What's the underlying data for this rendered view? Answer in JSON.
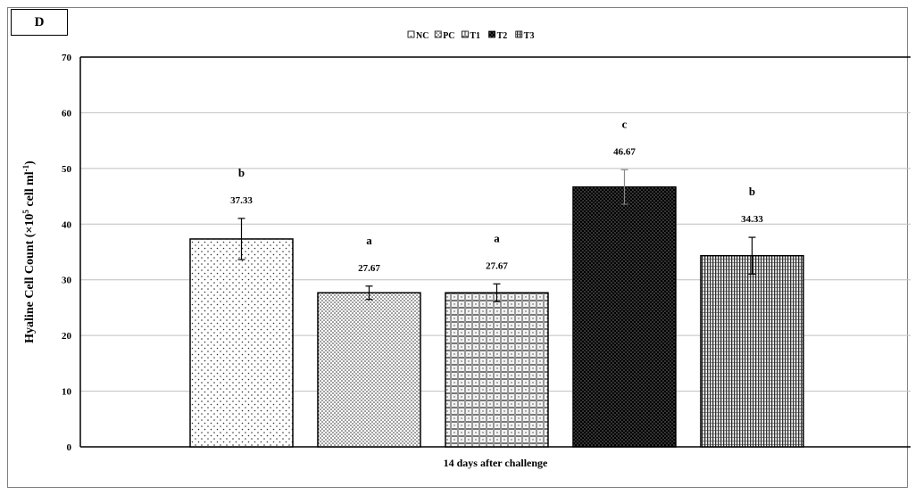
{
  "panel_label": "D",
  "chart_data": {
    "type": "bar",
    "title": "",
    "xlabel": "14 days after challenge",
    "ylabel_main": "Hyaline Cell Count (×10",
    "ylabel_exp": "5",
    "ylabel_mid": " cell ml",
    "ylabel_exp2": "-1",
    "ylabel_end": ")",
    "ylim": [
      0,
      70
    ],
    "yticks": [
      0,
      10,
      20,
      30,
      40,
      50,
      60,
      70
    ],
    "grid": true,
    "legend_position": "top-center",
    "series": [
      {
        "name": "NC",
        "value": 37.33,
        "error": 3.7,
        "value_label": "37.33",
        "letter": "b",
        "pattern": "sparse-dots"
      },
      {
        "name": "PC",
        "value": 27.67,
        "error": 1.2,
        "value_label": "27.67",
        "letter": "a",
        "pattern": "dense-dots"
      },
      {
        "name": "T1",
        "value": 27.67,
        "error": 1.6,
        "value_label": "27.67",
        "letter": "a",
        "pattern": "grid"
      },
      {
        "name": "T2",
        "value": 46.67,
        "error": 3.1,
        "value_label": "46.67",
        "letter": "c",
        "pattern": "dark"
      },
      {
        "name": "T3",
        "value": 34.33,
        "error": 3.3,
        "value_label": "34.33",
        "letter": "b",
        "pattern": "vstripes"
      }
    ]
  }
}
